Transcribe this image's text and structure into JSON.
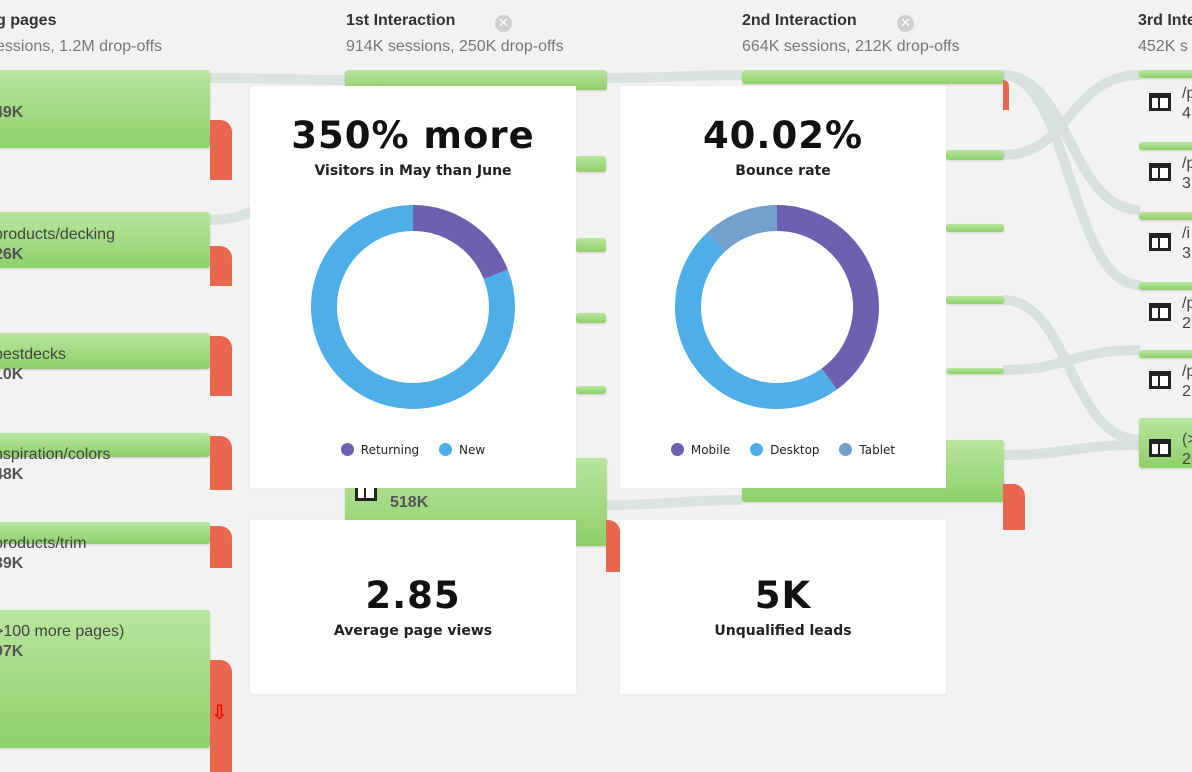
{
  "columns": [
    {
      "title": "g pages",
      "subtitle": "essions, 1.2M drop-offs",
      "closable": false
    },
    {
      "title": "1st Interaction",
      "subtitle": "914K sessions, 250K drop-offs",
      "closable": true
    },
    {
      "title": "2nd Interaction",
      "subtitle": "664K sessions, 212K drop-offs",
      "closable": true
    },
    {
      "title": "3rd Inte",
      "subtitle": "452K s",
      "closable": false
    }
  ],
  "landing_pages": [
    {
      "path": "",
      "count": "49K"
    },
    {
      "path": "products/decking",
      "count": "26K"
    },
    {
      "path": "bestdecks",
      "count": "10K"
    },
    {
      "path": "nspiration/colors",
      "count": "48K"
    },
    {
      "path": "products/trim",
      "count": "39K"
    },
    {
      "path": ">100 more pages)",
      "count": "97K"
    }
  ],
  "first_interaction_node": {
    "count": "518K"
  },
  "third_interaction_nodes": [
    {
      "top": "/p",
      "bottom": "4"
    },
    {
      "top": "/p",
      "bottom": "3"
    },
    {
      "top": "/i",
      "bottom": "3"
    },
    {
      "top": "/p",
      "bottom": "2"
    },
    {
      "top": "/p",
      "bottom": "2"
    },
    {
      "top": "(>",
      "bottom": "2"
    }
  ],
  "cards": {
    "visitors": {
      "headline": "350% more",
      "subtitle": "Visitors in May than June",
      "legend": [
        {
          "label": "Returning",
          "color": "#6f5fb0"
        },
        {
          "label": "New",
          "color": "#4daee8"
        }
      ]
    },
    "bounce": {
      "headline": "40.02%",
      "subtitle": "Bounce rate",
      "legend": [
        {
          "label": "Mobile",
          "color": "#6f5fb0"
        },
        {
          "label": "Desktop",
          "color": "#4daee8"
        },
        {
          "label": "Tablet",
          "color": "#74a0cc"
        }
      ]
    },
    "pageviews": {
      "value": "2.85",
      "label": "Average page views"
    },
    "leads": {
      "value": "5K",
      "label": "Unqualified leads"
    }
  },
  "chart_data": [
    {
      "type": "pie",
      "title": "350% more",
      "subtitle": "Visitors in May than June",
      "categories": [
        "Returning",
        "New"
      ],
      "values": [
        19,
        81
      ],
      "colors": [
        "#6f5fb0",
        "#4daee8"
      ]
    },
    {
      "type": "pie",
      "title": "40.02%",
      "subtitle": "Bounce rate",
      "categories": [
        "Mobile",
        "Desktop",
        "Tablet"
      ],
      "values": [
        40,
        48,
        12
      ],
      "colors": [
        "#6f5fb0",
        "#4daee8",
        "#74a0cc"
      ]
    }
  ]
}
